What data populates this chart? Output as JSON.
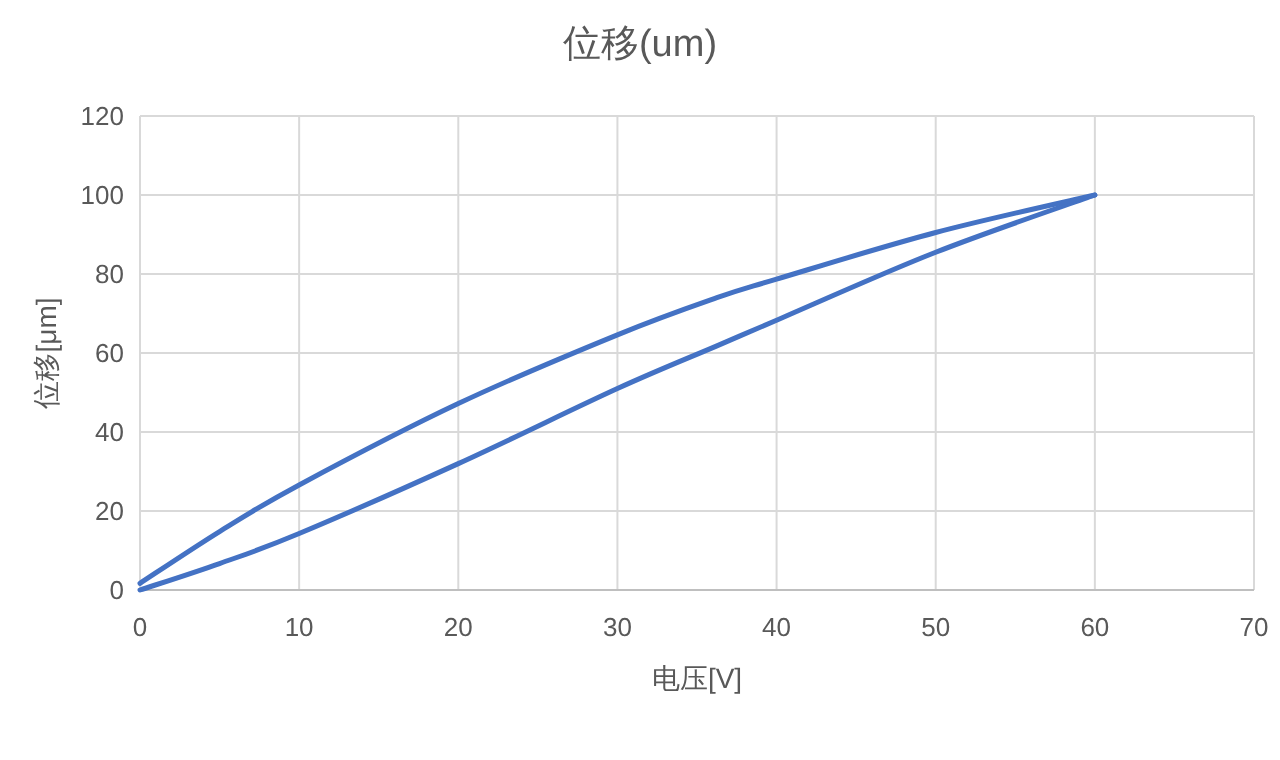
{
  "chart_data": {
    "type": "line",
    "title": "位移(um)",
    "xlabel": "电压[V]",
    "ylabel": "位移[μm]",
    "xlim": [
      0,
      70
    ],
    "xticks": [
      0,
      10,
      20,
      30,
      40,
      50,
      60,
      70
    ],
    "ylim": [
      0,
      120
    ],
    "yticks": [
      0,
      20,
      40,
      60,
      80,
      100,
      120
    ],
    "grid": true,
    "marker": "none",
    "line_style": "solid",
    "series": [
      {
        "color": "#4472c4",
        "x": [
          0,
          5,
          10,
          20,
          30,
          36.25,
          40,
          50,
          60
        ],
        "values": [
          0,
          6.7,
          14.3,
          32,
          51,
          61.8,
          68.3,
          85.5,
          100
        ]
      },
      {
        "color": "#4472c4",
        "x": [
          60,
          50,
          40,
          36.25,
          30,
          20,
          10,
          5,
          0
        ],
        "values": [
          100,
          90.5,
          78.7,
          74,
          64.6,
          47.2,
          26.6,
          14.8,
          1.7
        ]
      }
    ]
  }
}
